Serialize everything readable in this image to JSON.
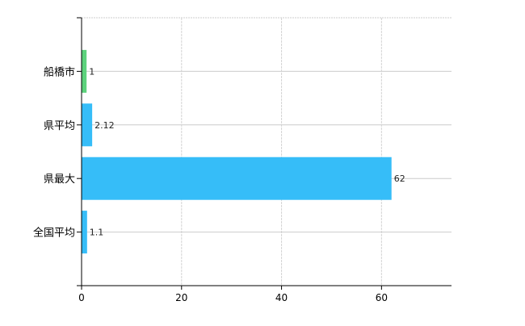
{
  "chart_data": {
    "type": "bar",
    "orientation": "horizontal",
    "categories": [
      "船橋市",
      "県平均",
      "県最大",
      "全国平均"
    ],
    "values": [
      1,
      2.12,
      62,
      1.1
    ],
    "data_labels": [
      "1",
      "2.12",
      "62",
      "1.1"
    ],
    "colors": [
      "#5dd27c",
      "#36bdf8",
      "#36bdf8",
      "#36bdf8"
    ],
    "xlim": [
      0,
      74
    ],
    "xticks": [
      0,
      20,
      40,
      60
    ],
    "xtick_labels": [
      "0",
      "20",
      "40",
      "60"
    ],
    "grid": true,
    "title": "",
    "xlabel": "",
    "ylabel": ""
  }
}
